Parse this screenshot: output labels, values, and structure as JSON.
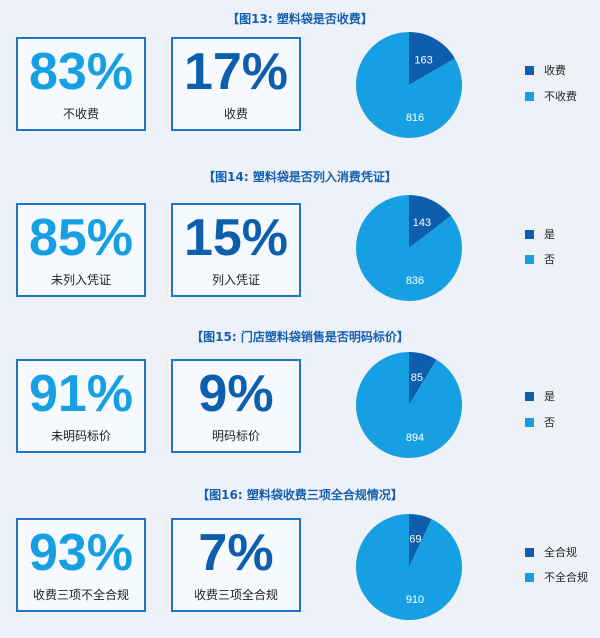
{
  "colors": {
    "dark": "#0d5fae",
    "light": "#16a0e3",
    "page_bg": "#eef2f8",
    "border": "#1f73c8"
  },
  "chart_data": [
    {
      "type": "pie",
      "title": "【图13: 塑料袋是否收费】",
      "stats": [
        {
          "value": "83%",
          "label": "不收费"
        },
        {
          "value": "17%",
          "label": "收费"
        }
      ],
      "categories": [
        "收费",
        "不收费"
      ],
      "values": [
        163,
        816
      ],
      "legend": [
        "收费",
        "不收费"
      ]
    },
    {
      "type": "pie",
      "title": "【图14: 塑料袋是否列入消费凭证】",
      "stats": [
        {
          "value": "85%",
          "label": "未列入凭证"
        },
        {
          "value": "15%",
          "label": "列入凭证"
        }
      ],
      "categories": [
        "是",
        "否"
      ],
      "values": [
        143,
        836
      ],
      "legend": [
        "是",
        "否"
      ]
    },
    {
      "type": "pie",
      "title": "【图15: 门店塑料袋销售是否明码标价】",
      "stats": [
        {
          "value": "91%",
          "label": "未明码标价"
        },
        {
          "value": "9%",
          "label": "明码标价"
        }
      ],
      "categories": [
        "是",
        "否"
      ],
      "values": [
        85,
        894
      ],
      "legend": [
        "是",
        "否"
      ]
    },
    {
      "type": "pie",
      "title": "【图16: 塑料袋收费三项全合规情况】",
      "stats": [
        {
          "value": "93%",
          "label": "收费三项不全合规"
        },
        {
          "value": "7%",
          "label": "收费三项全合规"
        }
      ],
      "categories": [
        "全合规",
        "不全合规"
      ],
      "values": [
        69,
        910
      ],
      "legend": [
        "全合规",
        "不全合规"
      ]
    }
  ]
}
